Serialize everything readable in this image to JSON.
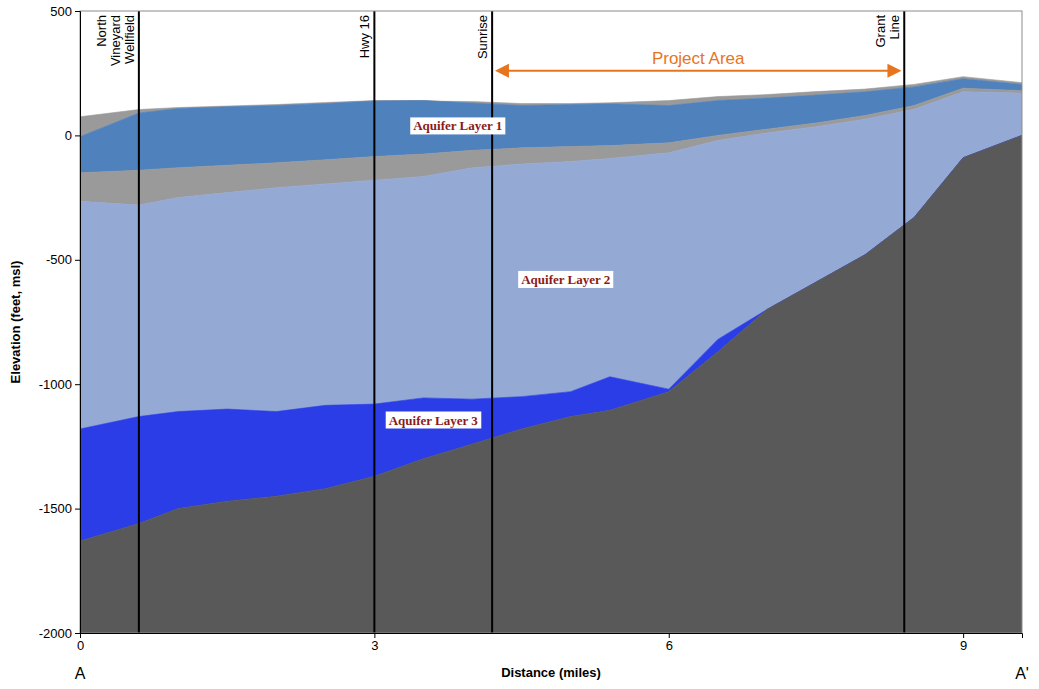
{
  "chart_data": {
    "type": "area",
    "x_label": "Distance (miles)",
    "y_label": "Elevation (feet, msl)",
    "x": [
      0,
      0.6,
      1,
      1.5,
      2,
      2.5,
      3,
      3.5,
      4,
      4.5,
      5,
      5.4,
      6,
      6.5,
      7,
      7.5,
      8,
      8.5,
      9,
      9.6
    ],
    "xlim": [
      0,
      9.6
    ],
    "xticks": [
      0,
      3,
      6,
      9
    ],
    "ylim": [
      -2000,
      500
    ],
    "yticks": [
      -2000,
      -1500,
      -1000,
      -500,
      0,
      500
    ],
    "grid": false,
    "series": [
      {
        "color": "#9a9a9a",
        "values": [
          75,
          104,
          112,
          118,
          124,
          132,
          140,
          138,
          136,
          128,
          128,
          131,
          140,
          156,
          164,
          176,
          186,
          205,
          236,
          212
        ]
      },
      {
        "color": "#4f81bd",
        "values": [
          -5,
          90,
          108,
          115,
          120,
          128,
          138,
          140,
          130,
          120,
          124,
          127,
          120,
          140,
          150,
          162,
          175,
          195,
          228,
          205
        ]
      },
      {
        "color": "#9a9a9a",
        "values": [
          -150,
          -140,
          -130,
          -120,
          -110,
          -98,
          -85,
          -75,
          -60,
          -50,
          -45,
          -41,
          -30,
          0,
          25,
          50,
          80,
          120,
          190,
          180
        ]
      },
      {
        "color": "#95a9d5",
        "values": [
          -265,
          -280,
          -250,
          -230,
          -210,
          -195,
          -180,
          -165,
          -130,
          -115,
          -105,
          -93,
          -70,
          -20,
          10,
          35,
          65,
          105,
          175,
          170
        ]
      },
      {
        "color": "#2a3de6",
        "values": [
          -1180,
          -1130,
          -1110,
          -1100,
          -1110,
          -1085,
          -1080,
          -1055,
          -1060,
          -1050,
          -1030,
          -970,
          -1020,
          -820,
          -700,
          -590,
          -480,
          -330,
          -90,
          0
        ]
      },
      {
        "color": "#595959",
        "values": [
          -1630,
          -1560,
          -1500,
          -1470,
          -1450,
          -1420,
          -1370,
          -1300,
          -1240,
          -1180,
          -1130,
          -1105,
          -1030,
          -870,
          -700,
          -590,
          -480,
          -330,
          -90,
          0
        ]
      }
    ],
    "annotations": [
      {
        "text": "Aquifer Layer 1",
        "x": 3.85,
        "y": 32
      },
      {
        "text": "Aquifer Layer 2",
        "x": 4.95,
        "y": -585
      },
      {
        "text": "Aquifer Layer 3",
        "x": 3.6,
        "y": -1150
      }
    ],
    "vertical_lines": [
      {
        "x": 0.6,
        "label": "North Vineyard Wellfield"
      },
      {
        "x": 3.0,
        "label": "Hwy 16"
      },
      {
        "x": 4.2,
        "label": "Sunrise"
      },
      {
        "x": 8.4,
        "label": "Grant Line"
      }
    ],
    "range_arrow": {
      "text": "Project Area",
      "x0": 4.3,
      "x1": 8.3,
      "y": 260
    },
    "section_ends": [
      {
        "x": 0,
        "label": "A"
      },
      {
        "x": 9.6,
        "label": "A'"
      }
    ]
  }
}
